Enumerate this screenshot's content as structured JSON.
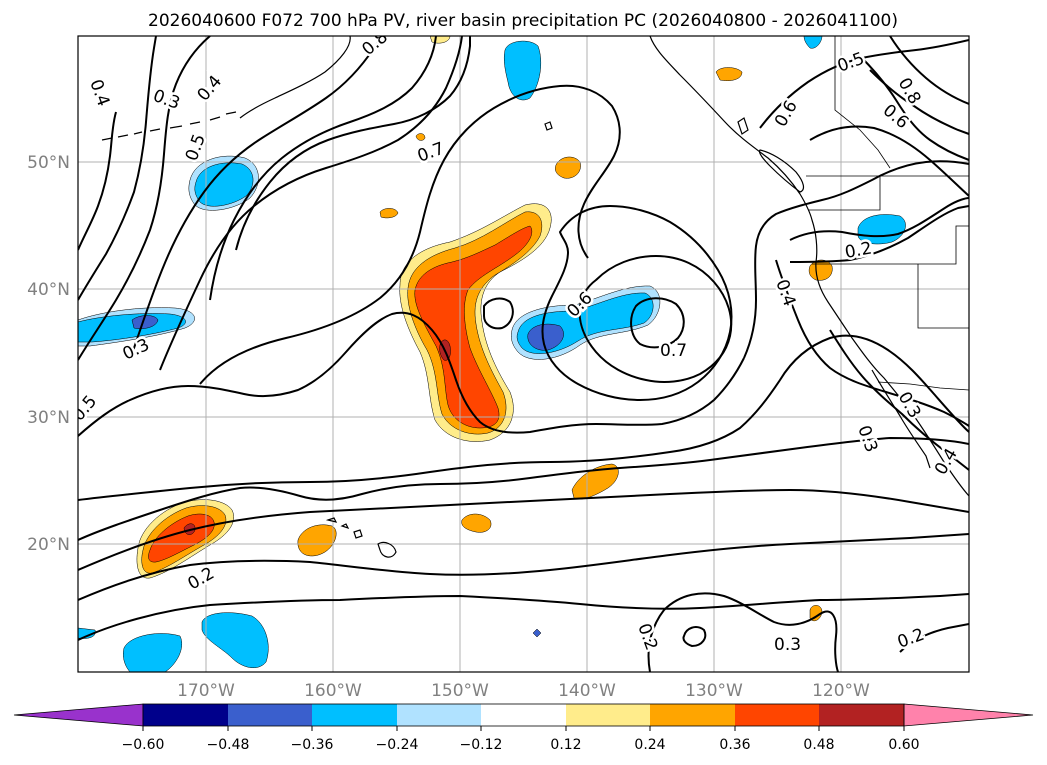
{
  "title": "2026040600 F072 700 hPa PV, river basin precipitation PC (2026040800 - 2026041100)",
  "lat_ticks": [
    "50°N",
    "40°N",
    "30°N",
    "20°N"
  ],
  "lon_ticks": [
    "170°W",
    "160°W",
    "150°W",
    "140°W",
    "130°W",
    "120°W"
  ],
  "colorbar": {
    "ticks": [
      "−0.60",
      "−0.48",
      "−0.36",
      "−0.24",
      "−0.12",
      "0.12",
      "0.24",
      "0.36",
      "0.48",
      "0.60"
    ],
    "colors": [
      "#9932cc",
      "#00008b",
      "#3a5fcd",
      "#00bfff",
      "#b0e2ff",
      "#ffffff",
      "#ffec8b",
      "#ffa500",
      "#ff4500",
      "#b22222",
      "#ff82ab"
    ]
  },
  "contour_labels": [
    "0.4",
    "0.3",
    "0.4",
    "0.5",
    "0.7",
    "0.8",
    "0.6",
    "0.5",
    "0.8",
    "0.6",
    "0.2",
    "0.4",
    "0.6",
    "0.7",
    "0.3",
    "0.5",
    "0.2",
    "0.3",
    "0.3",
    "0.4",
    "0.2",
    "0.3",
    "0.2"
  ],
  "fill_colors": {
    "light_blue": "#b0e2ff",
    "blue": "#00bfff",
    "mid_blue": "#3a5fcd",
    "yellow": "#ffec8b",
    "orange": "#ffa500",
    "red_orange": "#ff4500",
    "dark_red": "#b22222"
  }
}
